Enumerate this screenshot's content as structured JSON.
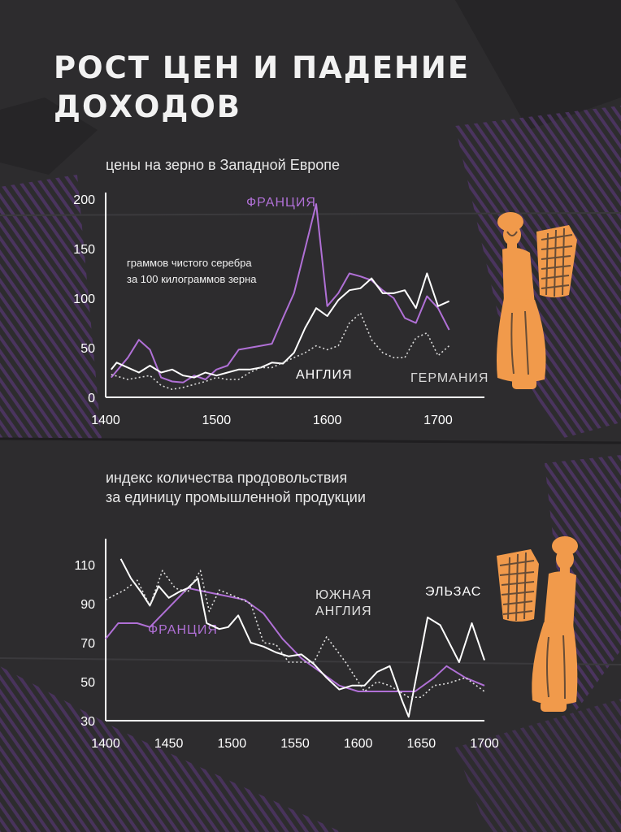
{
  "title": "РОСТ ЦЕН И ПАДЕНИЕ\nДОХОДОВ",
  "colors": {
    "background": "#2d2c2e",
    "france": "#b070d6",
    "england": "#ffffff",
    "germany": "#d9d9d9",
    "illustration": "#f19a4b",
    "stripes": "#5a3a78"
  },
  "chart_data": [
    {
      "type": "line",
      "subtitle": "цены на зерно в Западной Европе",
      "note": "граммов чистого серебра\nза 100 килограммов зерна",
      "xlim": [
        1400,
        1725
      ],
      "ylim": [
        0,
        200
      ],
      "xticks": [
        "1400",
        "1500",
        "1600",
        "1700"
      ],
      "yticks": [
        "0",
        "50",
        "100",
        "150",
        "200"
      ],
      "series": [
        {
          "name": "ФРАНЦИЯ",
          "style": "solid",
          "color": "#b070d6",
          "x": [
            1405,
            1420,
            1430,
            1440,
            1450,
            1460,
            1470,
            1480,
            1490,
            1500,
            1510,
            1520,
            1530,
            1540,
            1550,
            1560,
            1570,
            1580,
            1590,
            1600,
            1610,
            1620,
            1630,
            1640,
            1650,
            1660,
            1670,
            1680,
            1690,
            1700,
            1710
          ],
          "y": [
            20,
            40,
            58,
            48,
            20,
            16,
            15,
            22,
            18,
            28,
            32,
            48,
            50,
            52,
            54,
            80,
            105,
            150,
            195,
            92,
            105,
            125,
            122,
            118,
            108,
            100,
            80,
            75,
            102,
            90,
            68
          ]
        },
        {
          "name": "АНГЛИЯ",
          "style": "solid",
          "color": "#ffffff",
          "x": [
            1405,
            1410,
            1420,
            1430,
            1440,
            1450,
            1460,
            1470,
            1480,
            1490,
            1500,
            1510,
            1520,
            1530,
            1540,
            1550,
            1560,
            1570,
            1580,
            1590,
            1600,
            1610,
            1620,
            1630,
            1640,
            1650,
            1660,
            1670,
            1680,
            1690,
            1700,
            1710
          ],
          "y": [
            28,
            35,
            30,
            25,
            32,
            25,
            28,
            22,
            20,
            25,
            22,
            25,
            28,
            28,
            30,
            35,
            34,
            45,
            70,
            90,
            82,
            98,
            108,
            110,
            120,
            105,
            105,
            108,
            90,
            125,
            92,
            97
          ]
        },
        {
          "name": "ГЕРМАНИЯ",
          "style": "dotted",
          "color": "#d9d9d9",
          "x": [
            1405,
            1420,
            1430,
            1440,
            1450,
            1460,
            1470,
            1480,
            1490,
            1500,
            1510,
            1520,
            1530,
            1540,
            1550,
            1560,
            1570,
            1580,
            1590,
            1600,
            1610,
            1620,
            1630,
            1640,
            1650,
            1660,
            1670,
            1680,
            1690,
            1700,
            1710
          ],
          "y": [
            23,
            18,
            20,
            22,
            12,
            8,
            10,
            13,
            16,
            20,
            18,
            18,
            25,
            30,
            30,
            35,
            40,
            45,
            52,
            48,
            52,
            75,
            85,
            58,
            45,
            40,
            40,
            60,
            65,
            42,
            52
          ]
        }
      ]
    },
    {
      "type": "line",
      "subtitle": "индекс количества продовольствия\nза единицу промышленной продукции",
      "xlim": [
        1400,
        1700
      ],
      "ylim": [
        30,
        120
      ],
      "xticks": [
        "1400",
        "1450",
        "1500",
        "1550",
        "1600",
        "1650",
        "1700"
      ],
      "yticks": [
        "30",
        "50",
        "70",
        "90",
        "110"
      ],
      "series": [
        {
          "name": "ФРАНЦИЯ",
          "style": "solid",
          "color": "#b070d6",
          "x": [
            1400,
            1410,
            1425,
            1435,
            1450,
            1465,
            1480,
            1495,
            1510,
            1525,
            1540,
            1555,
            1570,
            1585,
            1600,
            1615,
            1630,
            1645,
            1660,
            1670,
            1685,
            1700
          ],
          "y": [
            72,
            80,
            80,
            78,
            88,
            98,
            96,
            94,
            92,
            85,
            72,
            62,
            55,
            48,
            45,
            45,
            45,
            45,
            52,
            58,
            52,
            48
          ]
        },
        {
          "name": "ЭЛЬЗАС",
          "style": "solid",
          "color": "#ffffff",
          "x": [
            1412,
            1420,
            1428,
            1435,
            1442,
            1450,
            1458,
            1465,
            1473,
            1480,
            1490,
            1497,
            1505,
            1515,
            1525,
            1535,
            1545,
            1555,
            1565,
            1575,
            1585,
            1595,
            1605,
            1615,
            1625,
            1635,
            1640,
            1655,
            1665,
            1680,
            1690,
            1700
          ],
          "y": [
            113,
            103,
            96,
            89,
            99,
            93,
            96,
            98,
            103,
            80,
            77,
            78,
            84,
            70,
            68,
            65,
            63,
            64,
            59,
            52,
            46,
            48,
            48,
            55,
            58,
            40,
            32,
            83,
            79,
            60,
            80,
            61
          ]
        },
        {
          "name": "ЮЖНАЯ\nАНГЛИЯ",
          "style": "dotted",
          "color": "#e0e0e0",
          "x": [
            1400,
            1415,
            1425,
            1435,
            1445,
            1455,
            1465,
            1475,
            1482,
            1490,
            1505,
            1515,
            1525,
            1535,
            1545,
            1555,
            1565,
            1575,
            1590,
            1605,
            1615,
            1625,
            1640,
            1650,
            1660,
            1670,
            1685,
            1700
          ],
          "y": [
            92,
            97,
            102,
            89,
            107,
            98,
            96,
            107,
            86,
            97,
            93,
            90,
            70,
            69,
            60,
            60,
            60,
            73,
            60,
            45,
            50,
            48,
            42,
            42,
            48,
            49,
            52,
            45
          ]
        }
      ]
    }
  ]
}
